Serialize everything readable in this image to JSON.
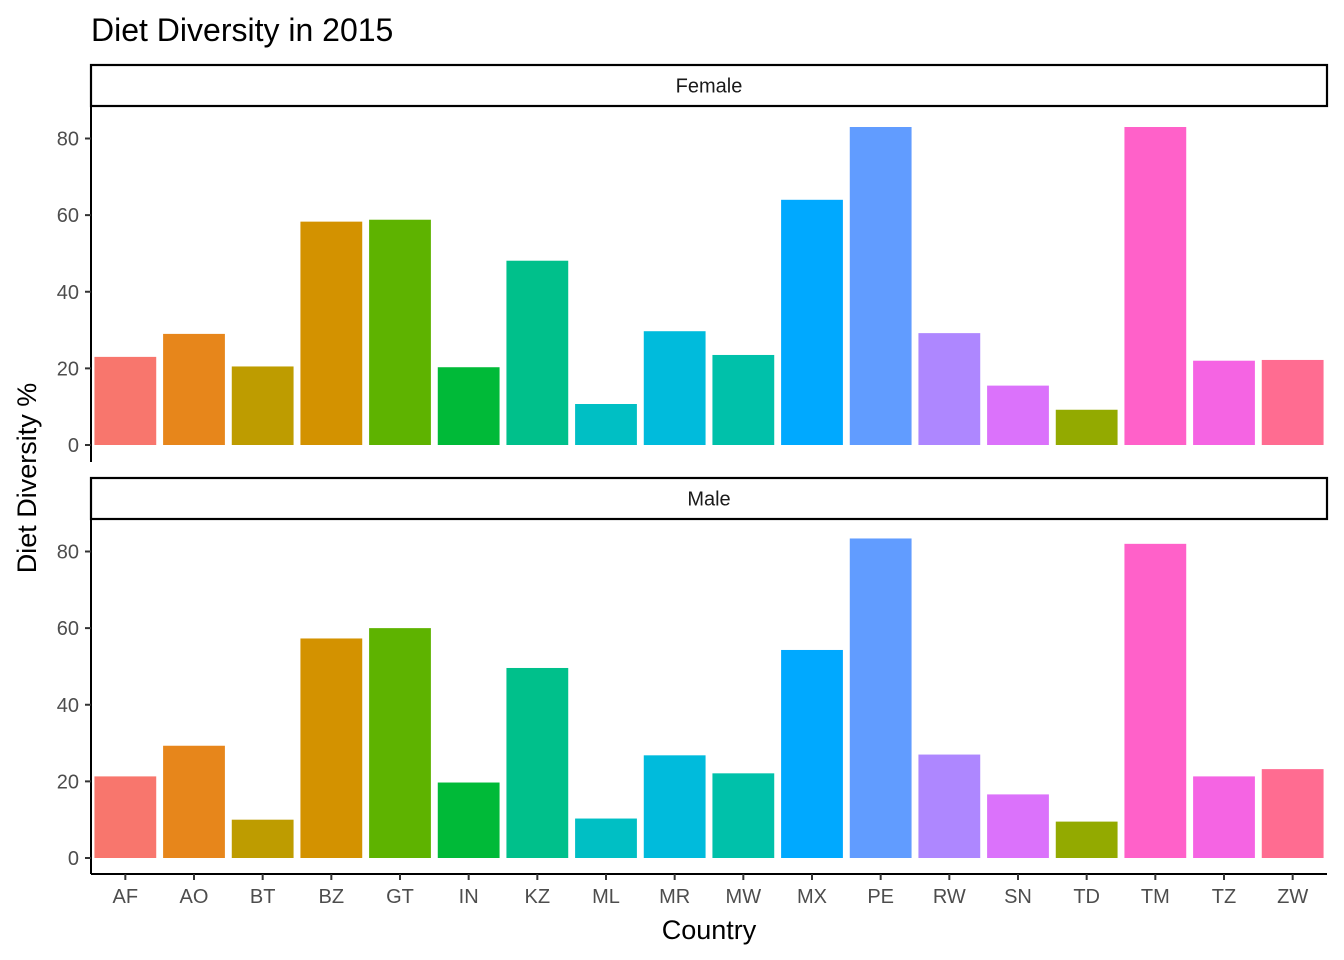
{
  "chart_data": {
    "type": "bar",
    "title": "Diet Diversity in 2015",
    "xlabel": "Country",
    "ylabel": "Diet Diversity %",
    "ylim": [
      0,
      87
    ],
    "yticks": [
      0,
      20,
      40,
      60,
      80
    ],
    "grid": false,
    "legend": "none",
    "categories": [
      "AF",
      "AO",
      "BT",
      "BZ",
      "GT",
      "IN",
      "KZ",
      "ML",
      "MR",
      "MW",
      "MX",
      "PE",
      "RW",
      "SN",
      "TD",
      "TM",
      "TZ",
      "ZW"
    ],
    "colors": [
      "#F8766D",
      "#E7861B",
      "#BE9C00",
      "#D39200",
      "#5EB300",
      "#00BA38",
      "#00C08B",
      "#00BFC4",
      "#00BBDC",
      "#00C1AA",
      "#00A9FF",
      "#619CFF",
      "#AE87FF",
      "#DB72FB",
      "#93AA00",
      "#FF61C9",
      "#F564E3",
      "#FF6C91"
    ],
    "panels": [
      {
        "name": "Female",
        "values": [
          23,
          29,
          20.5,
          58.3,
          58.8,
          20.3,
          48.1,
          10.7,
          29.7,
          23.5,
          64,
          83,
          29.2,
          15.5,
          9.2,
          83,
          22,
          22.2
        ]
      },
      {
        "name": "Male",
        "values": [
          21.3,
          29.3,
          10,
          57.3,
          60,
          19.7,
          49.6,
          10.3,
          26.8,
          22.1,
          54.3,
          83.4,
          27,
          16.6,
          9.5,
          82,
          21.3,
          23.2
        ]
      }
    ]
  }
}
